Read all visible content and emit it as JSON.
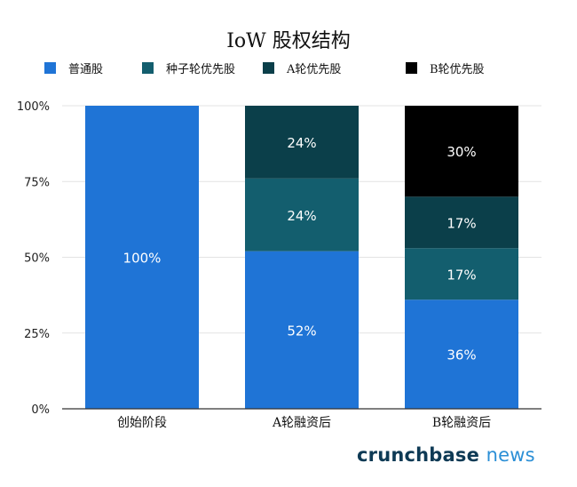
{
  "chart_data": {
    "type": "bar",
    "stacked": true,
    "title": "IoW 股权结构",
    "xlabel": "",
    "ylabel": "",
    "ylim": [
      0,
      100
    ],
    "y_ticks": [
      "0%",
      "25%",
      "50%",
      "75%",
      "100%"
    ],
    "y_tick_values": [
      0,
      25,
      50,
      75,
      100
    ],
    "grid": true,
    "legend_position": "top",
    "categories": [
      "创始阶段",
      "A轮融资后",
      "B轮融资后"
    ],
    "series": [
      {
        "name": "普通股",
        "color": "#1f74d6",
        "values": [
          100,
          52,
          36
        ],
        "labels": [
          "100%",
          "52%",
          "36%"
        ]
      },
      {
        "name": "种子轮优先股",
        "color": "#135e6e",
        "values": [
          0,
          24,
          17
        ],
        "labels": [
          "",
          "24%",
          "17%"
        ]
      },
      {
        "name": "A轮优先股",
        "color": "#0b3f4a",
        "values": [
          0,
          24,
          17
        ],
        "labels": [
          "",
          "24%",
          "17%"
        ]
      },
      {
        "name": "B轮优先股",
        "color": "#000000",
        "values": [
          0,
          0,
          30
        ],
        "labels": [
          "",
          "",
          "30%"
        ]
      }
    ]
  },
  "brand": {
    "part1": "crunchbase",
    "part2": "news"
  }
}
